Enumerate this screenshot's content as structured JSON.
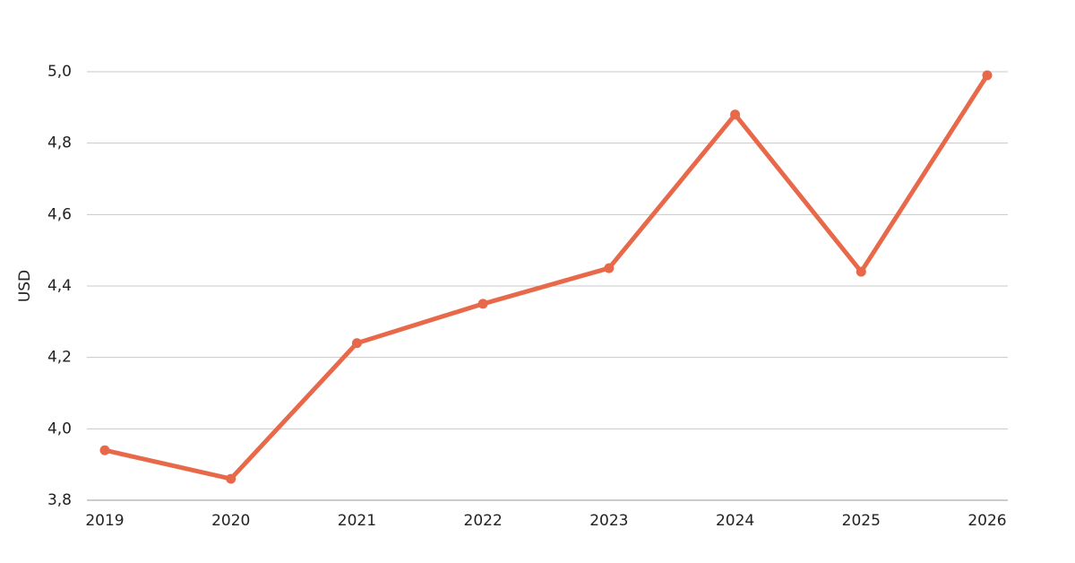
{
  "chart_data": {
    "type": "line",
    "ylabel": "USD",
    "categories": [
      "2019",
      "2020",
      "2021",
      "2022",
      "2023",
      "2024",
      "2025",
      "2026"
    ],
    "series": [
      {
        "name": "USD",
        "color": "#e8694a",
        "values": [
          3.94,
          3.86,
          4.24,
          4.35,
          4.45,
          4.88,
          4.44,
          4.99
        ]
      }
    ],
    "ylim": [
      3.8,
      5.0
    ],
    "yticks": [
      {
        "value": 3.8,
        "label": "3,8"
      },
      {
        "value": 4.0,
        "label": "4,0"
      },
      {
        "value": 4.2,
        "label": "4,2"
      },
      {
        "value": 4.4,
        "label": "4,4"
      },
      {
        "value": 4.6,
        "label": "4,6"
      },
      {
        "value": 4.8,
        "label": "4,8"
      },
      {
        "value": 5.0,
        "label": "5,0"
      }
    ],
    "grid": true
  }
}
